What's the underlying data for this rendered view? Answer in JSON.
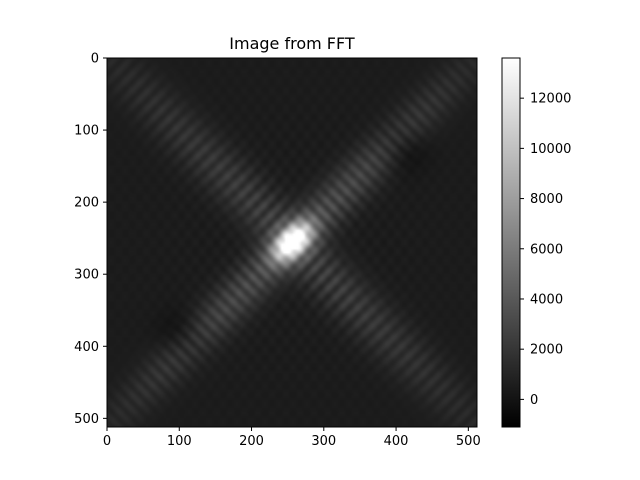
{
  "chart_data": {
    "type": "heatmap",
    "title": "Image from FFT",
    "colormap": "gray",
    "image_size": [
      512,
      512
    ],
    "x_ticks": [
      0,
      100,
      200,
      300,
      400,
      500
    ],
    "y_ticks": [
      0,
      100,
      200,
      300,
      400,
      500
    ],
    "xlim": [
      0,
      512
    ],
    "ylim": [
      512,
      0
    ],
    "y_axis_inverted": true,
    "colorbar": {
      "min": -1100,
      "max": 13600,
      "ticks": [
        0,
        2000,
        4000,
        6000,
        8000,
        10000,
        12000
      ]
    },
    "features": {
      "peak_center": [
        257,
        255
      ],
      "peak_value": 13600,
      "diagonal_band_value": 3500,
      "anti_diagonal_band_value": 2500,
      "background_value": 500
    }
  }
}
